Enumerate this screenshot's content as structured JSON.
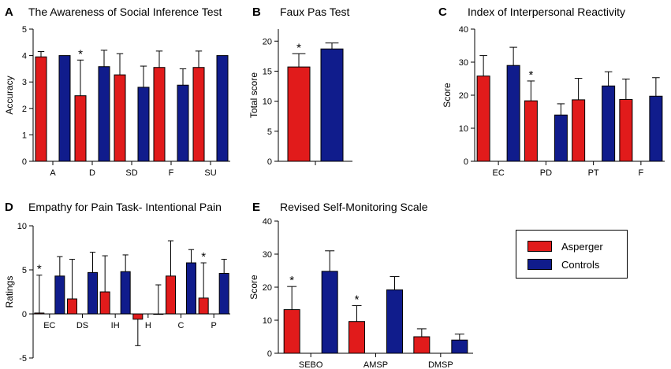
{
  "colors": {
    "asperger": "#e11b1b",
    "controls": "#101c8c"
  },
  "legend": {
    "series": [
      "Asperger",
      "Controls"
    ]
  },
  "chart_data": [
    {
      "letter": "A",
      "title": "The Awareness of Social Inference Test",
      "type": "bar",
      "xlabel": "",
      "ylabel": "Accuracy",
      "ylim": [
        0,
        5
      ],
      "yticks": [
        0,
        1,
        2,
        3,
        4,
        5
      ],
      "ytick_labels": [
        "0",
        "1",
        "2",
        "3",
        "4",
        "5"
      ],
      "categories": [
        "A",
        "D",
        "SD",
        "F",
        "SU"
      ],
      "series": [
        {
          "name": "Asperger",
          "values": [
            3.95,
            2.48,
            3.27,
            3.55,
            3.55
          ],
          "err": [
            0.2,
            1.35,
            0.8,
            0.62,
            0.62
          ]
        },
        {
          "name": "Controls",
          "values": [
            4.0,
            3.58,
            2.8,
            2.88,
            4.0
          ],
          "err": [
            0,
            0.62,
            0.8,
            0.62,
            0
          ]
        }
      ],
      "annotations": [
        {
          "category": "D",
          "series": "Asperger",
          "text": "*"
        }
      ]
    },
    {
      "letter": "B",
      "title": "Faux Pas Test",
      "type": "bar",
      "xlabel": "",
      "ylabel": "Total score",
      "ylim": [
        0,
        22
      ],
      "yticks": [
        0,
        5,
        10,
        15,
        20
      ],
      "ytick_labels": [
        "0",
        "5",
        "10",
        "15",
        "20"
      ],
      "categories": [
        ""
      ],
      "series": [
        {
          "name": "Asperger",
          "values": [
            15.7
          ],
          "err": [
            2.2
          ]
        },
        {
          "name": "Controls",
          "values": [
            18.7
          ],
          "err": [
            1.0
          ]
        }
      ],
      "annotations": [
        {
          "category": "",
          "series": "Asperger",
          "text": "*"
        }
      ]
    },
    {
      "letter": "C",
      "title": "Index of Interpersonal Reactivity",
      "type": "bar",
      "xlabel": "",
      "ylabel": "Score",
      "ylim": [
        0,
        40
      ],
      "yticks": [
        0,
        10,
        20,
        30,
        40
      ],
      "ytick_labels": [
        "0",
        "10",
        "20",
        "30",
        "40"
      ],
      "categories": [
        "EC",
        "PD",
        "PT",
        "F"
      ],
      "series": [
        {
          "name": "Asperger",
          "values": [
            25.8,
            18.3,
            18.6,
            18.7
          ],
          "err": [
            6.2,
            6.0,
            6.5,
            6.2
          ]
        },
        {
          "name": "Controls",
          "values": [
            29.0,
            14.0,
            22.8,
            19.7
          ],
          "err": [
            5.5,
            3.4,
            4.3,
            5.6
          ]
        }
      ],
      "annotations": [
        {
          "category": "PD",
          "series": "Asperger",
          "text": "*"
        }
      ]
    },
    {
      "letter": "D",
      "title": "Empathy for Pain Task- Intentional Pain",
      "type": "bar",
      "xlabel": "",
      "ylabel": "Ratings",
      "ylim": [
        -5,
        10
      ],
      "yticks": [
        -5,
        0,
        5,
        10
      ],
      "ytick_labels": [
        "-5",
        "0",
        "5",
        "10"
      ],
      "categories": [
        "EC",
        "DS",
        "IH",
        "H",
        "C",
        "P"
      ],
      "series": [
        {
          "name": "Asperger",
          "values": [
            0.1,
            1.7,
            2.5,
            -0.6,
            4.3,
            1.8
          ],
          "err": [
            4.3,
            4.5,
            4.1,
            3.0,
            4.0,
            4.0
          ]
        },
        {
          "name": "Controls",
          "values": [
            4.3,
            4.7,
            4.8,
            0.0,
            5.8,
            4.6
          ],
          "err": [
            2.2,
            2.3,
            1.9,
            3.3,
            1.5,
            1.6
          ]
        }
      ],
      "annotations": [
        {
          "category": "EC",
          "series": "Asperger",
          "text": "*"
        },
        {
          "category": "P",
          "series": "Asperger",
          "text": "*"
        }
      ]
    },
    {
      "letter": "E",
      "title": "Revised Self-Monitoring Scale",
      "type": "bar",
      "xlabel": "",
      "ylabel": "Score",
      "ylim": [
        0,
        40
      ],
      "yticks": [
        0,
        10,
        20,
        30,
        40
      ],
      "ytick_labels": [
        "0",
        "10",
        "20",
        "30",
        "40"
      ],
      "categories": [
        "SEBO",
        "AMSP",
        "DMSP"
      ],
      "series": [
        {
          "name": "Asperger",
          "values": [
            13.2,
            9.6,
            5.0
          ],
          "err": [
            7.0,
            4.8,
            2.4
          ]
        },
        {
          "name": "Controls",
          "values": [
            24.8,
            19.2,
            4.0
          ],
          "err": [
            6.2,
            4.0,
            1.8
          ]
        }
      ],
      "annotations": [
        {
          "category": "SEBO",
          "series": "Asperger",
          "text": "*"
        },
        {
          "category": "AMSP",
          "series": "Asperger",
          "text": "*"
        }
      ]
    }
  ]
}
